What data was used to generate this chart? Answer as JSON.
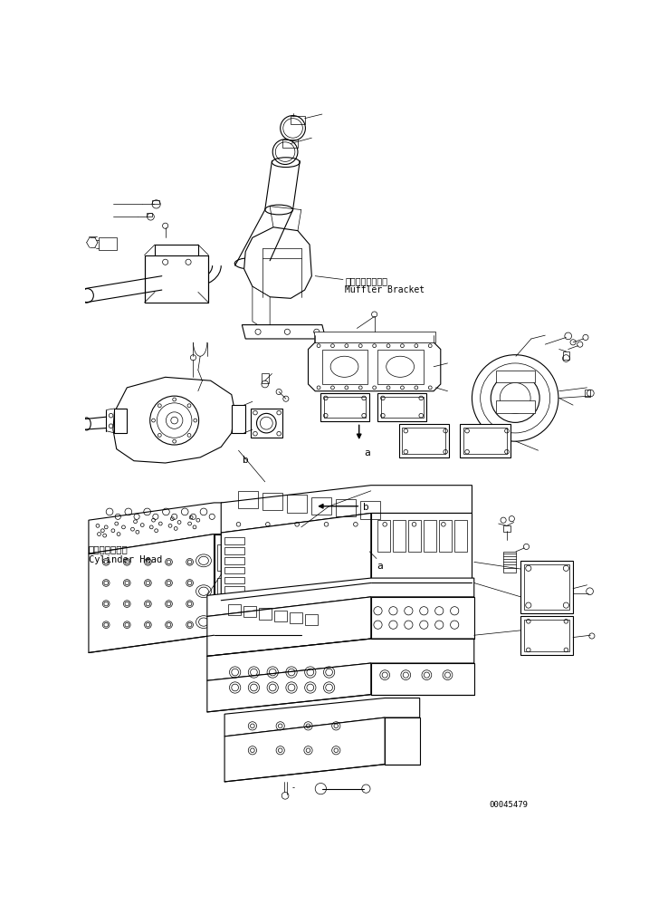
{
  "bg_color": "#ffffff",
  "line_color": "#000000",
  "fig_width": 7.38,
  "fig_height": 9.99,
  "dpi": 100,
  "part_number": "00045479",
  "label_muffler_jp": "マフラブラケット",
  "label_muffler_en": "Muffler Bracket",
  "label_cylinder_jp": "シリンダヘッド",
  "label_cylinder_en": "Cylinder Head"
}
